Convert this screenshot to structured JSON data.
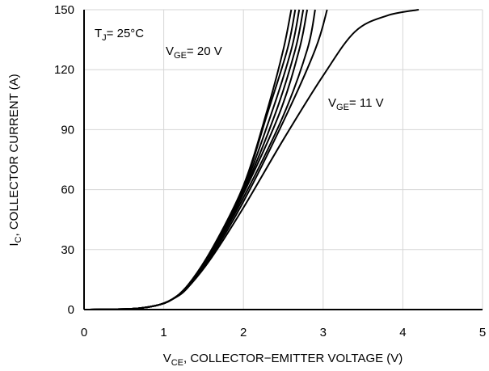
{
  "chart_data": {
    "type": "line",
    "xlabel": {
      "main": "V",
      "sub": "CE",
      "rest": ", COLLECTOR−EMITTER VOLTAGE (V)"
    },
    "ylabel": {
      "main": "I",
      "sub": "C",
      "rest": ", COLLECTOR CURRENT (A)"
    },
    "xlim": [
      0,
      5
    ],
    "ylim": [
      0,
      150
    ],
    "xticks": [
      "0",
      "1",
      "2",
      "3",
      "4",
      "5"
    ],
    "yticks": [
      "0",
      "30",
      "60",
      "90",
      "120",
      "150"
    ],
    "grid": true,
    "annotations": [
      {
        "id": "tj",
        "main": "T",
        "sub": "J",
        "rest": "= 25°C"
      },
      {
        "id": "vge_high",
        "main": "V",
        "sub": "GE",
        "rest": "= 20 V"
      },
      {
        "id": "vge_low",
        "main": "V",
        "sub": "GE",
        "rest": "= 11 V"
      }
    ],
    "series": [
      {
        "points": [
          [
            0,
            0
          ],
          [
            0.6,
            0.4
          ],
          [
            0.9,
            2
          ],
          [
            1.1,
            5
          ],
          [
            1.3,
            12
          ],
          [
            1.6,
            30
          ],
          [
            2.0,
            62
          ],
          [
            2.3,
            100
          ],
          [
            2.5,
            130
          ],
          [
            2.6,
            150
          ]
        ]
      },
      {
        "points": [
          [
            0,
            0
          ],
          [
            0.6,
            0.4
          ],
          [
            0.9,
            2
          ],
          [
            1.1,
            5
          ],
          [
            1.3,
            12
          ],
          [
            1.6,
            30
          ],
          [
            2.0,
            61
          ],
          [
            2.3,
            98
          ],
          [
            2.55,
            130
          ],
          [
            2.65,
            150
          ]
        ]
      },
      {
        "points": [
          [
            0,
            0
          ],
          [
            0.6,
            0.4
          ],
          [
            0.9,
            2
          ],
          [
            1.1,
            5
          ],
          [
            1.3,
            12
          ],
          [
            1.6,
            29
          ],
          [
            2.0,
            60
          ],
          [
            2.35,
            98
          ],
          [
            2.6,
            130
          ],
          [
            2.7,
            150
          ]
        ]
      },
      {
        "points": [
          [
            0,
            0
          ],
          [
            0.6,
            0.4
          ],
          [
            0.9,
            2
          ],
          [
            1.1,
            5
          ],
          [
            1.3,
            12
          ],
          [
            1.6,
            29
          ],
          [
            2.0,
            59
          ],
          [
            2.4,
            98
          ],
          [
            2.65,
            130
          ],
          [
            2.75,
            150
          ]
        ]
      },
      {
        "points": [
          [
            0,
            0
          ],
          [
            0.6,
            0.4
          ],
          [
            0.9,
            2
          ],
          [
            1.1,
            5
          ],
          [
            1.3,
            12
          ],
          [
            1.6,
            28
          ],
          [
            2.0,
            58
          ],
          [
            2.45,
            98
          ],
          [
            2.7,
            130
          ],
          [
            2.8,
            150
          ]
        ]
      },
      {
        "points": [
          [
            0,
            0
          ],
          [
            0.6,
            0.4
          ],
          [
            0.9,
            2
          ],
          [
            1.1,
            5
          ],
          [
            1.3,
            11
          ],
          [
            1.6,
            28
          ],
          [
            2.0,
            56
          ],
          [
            2.5,
            97
          ],
          [
            2.8,
            130
          ],
          [
            2.9,
            150
          ]
        ]
      },
      {
        "points": [
          [
            0,
            0
          ],
          [
            0.6,
            0.4
          ],
          [
            0.9,
            2
          ],
          [
            1.1,
            5
          ],
          [
            1.3,
            11
          ],
          [
            1.6,
            27
          ],
          [
            2.0,
            54
          ],
          [
            2.5,
            94
          ],
          [
            2.9,
            130
          ],
          [
            3.05,
            150
          ]
        ]
      },
      {
        "points": [
          [
            0,
            0
          ],
          [
            0.6,
            0.4
          ],
          [
            0.9,
            2
          ],
          [
            1.1,
            5
          ],
          [
            1.3,
            11
          ],
          [
            1.6,
            26
          ],
          [
            2.0,
            51
          ],
          [
            2.5,
            85
          ],
          [
            3.0,
            117
          ],
          [
            3.4,
            139
          ],
          [
            3.8,
            147
          ],
          [
            4.2,
            150
          ]
        ]
      }
    ]
  }
}
